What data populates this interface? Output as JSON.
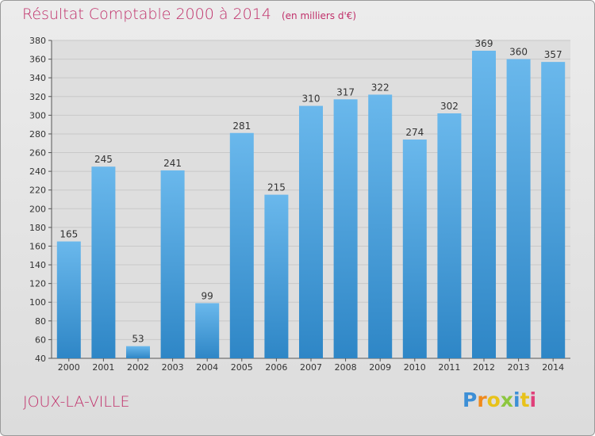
{
  "header": {
    "title": "Résultat Comptable 2000 à 2014",
    "subtitle": "(en milliers d'€)"
  },
  "footer": {
    "commune": "JOUX-LA-VILLE",
    "logo": "Proxiti"
  },
  "colors": {
    "bar_light": "#6ab8ec",
    "bar_dark": "#2e86c6",
    "title": "#c0306a",
    "grid": "#c8c8c8"
  },
  "chart_data": {
    "type": "bar",
    "title": "Résultat Comptable 2000 à 2014",
    "subtitle": "(en milliers d'€)",
    "categories": [
      "2000",
      "2001",
      "2002",
      "2003",
      "2004",
      "2005",
      "2006",
      "2007",
      "2008",
      "2009",
      "2010",
      "2011",
      "2012",
      "2013",
      "2014"
    ],
    "values": [
      165,
      245,
      53,
      241,
      99,
      281,
      215,
      310,
      317,
      322,
      274,
      302,
      369,
      360,
      357
    ],
    "ylim": [
      40,
      380
    ],
    "ytick_step": 20,
    "grid": true,
    "data_labels": true,
    "xlabel": "",
    "ylabel": ""
  }
}
